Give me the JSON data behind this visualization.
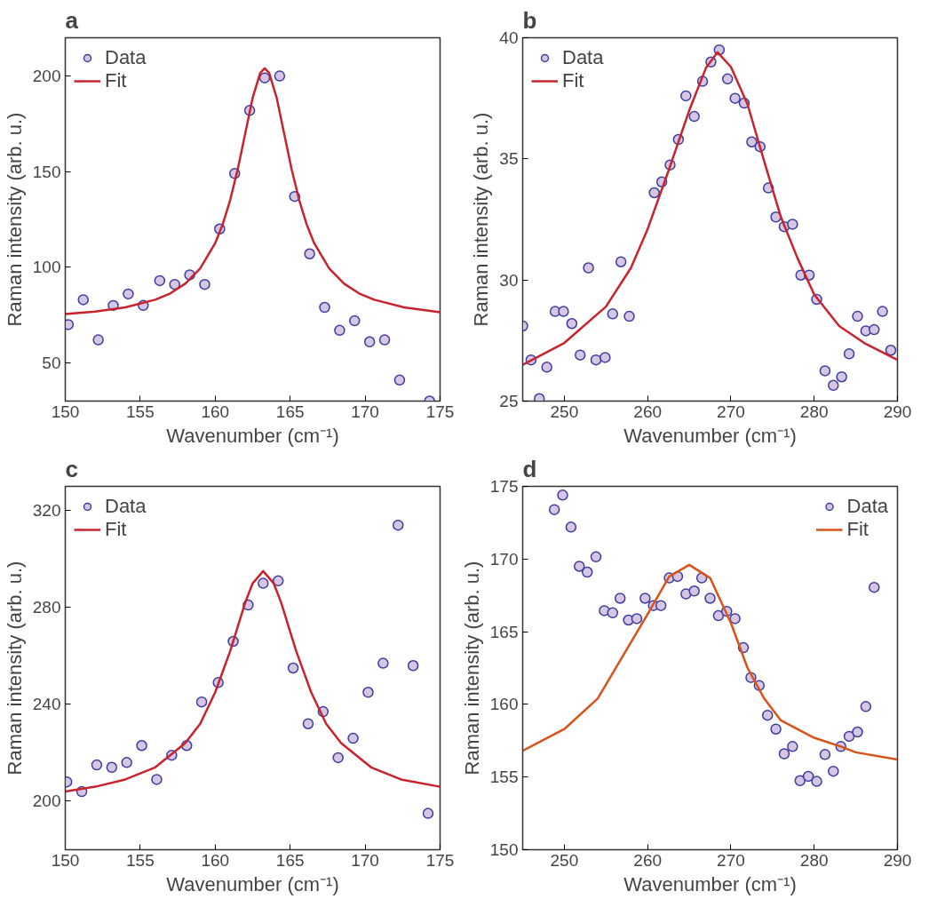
{
  "chart_data": [
    {
      "type": "scatter",
      "title": "a",
      "xlabel": "Wavenumber (cm⁻¹)",
      "ylabel": "Raman intensity (arb. u.)",
      "xlim": [
        150,
        175
      ],
      "ylim": [
        30,
        220
      ],
      "xticks": [
        150,
        155,
        160,
        165,
        170,
        175
      ],
      "yticks": [
        50,
        100,
        150,
        200
      ],
      "grid": false,
      "legend": "top left",
      "series": [
        {
          "name": "Data",
          "marker": "circle",
          "color": "#d7c6e3",
          "x": [
            150.2,
            151.2,
            152.2,
            153.2,
            154.2,
            155.2,
            156.3,
            157.3,
            158.3,
            159.3,
            160.3,
            161.3,
            162.3,
            163.3,
            164.3,
            165.3,
            166.3,
            167.3,
            168.3,
            169.3,
            170.3,
            171.3,
            172.3,
            174.3
          ],
          "values": [
            70,
            83,
            62,
            80,
            86,
            80,
            93,
            91,
            96,
            91,
            120,
            149,
            182,
            199,
            200,
            137,
            107,
            79,
            67,
            72,
            61,
            62,
            41,
            30
          ]
        },
        {
          "name": "Fit",
          "type": "line",
          "color": "#c8232c",
          "x": [
            150,
            152,
            154,
            156,
            157,
            158,
            159,
            160,
            160.5,
            161,
            161.5,
            162,
            162.5,
            163,
            163.3,
            163.6,
            164.1,
            164.6,
            165.1,
            165.6,
            166.1,
            166.6,
            167.6,
            168.6,
            169.6,
            170.6,
            172.6,
            175
          ],
          "values": [
            75.5,
            76.8,
            79,
            83,
            86.3,
            91.4,
            99.4,
            112.6,
            122.4,
            135.2,
            151.1,
            169.8,
            188.6,
            201.6,
            204,
            201.6,
            188.6,
            169.8,
            151.1,
            135.2,
            122.4,
            112.6,
            99.4,
            91.4,
            86.3,
            83,
            79,
            76.5
          ]
        }
      ]
    },
    {
      "type": "scatter",
      "title": "b",
      "xlabel": "Wavenumber (cm⁻¹)",
      "ylabel": "Raman intensity (arb. u.)",
      "xlim": [
        245,
        290
      ],
      "ylim": [
        25,
        40
      ],
      "xticks": [
        250,
        260,
        270,
        280,
        290
      ],
      "yticks": [
        25,
        30,
        35,
        40
      ],
      "grid": false,
      "legend": "top left",
      "series": [
        {
          "name": "Data",
          "marker": "circle",
          "color": "#d7c6e3",
          "x": [
            245.0,
            246.0,
            247.0,
            247.9,
            248.9,
            249.9,
            250.9,
            251.9,
            252.9,
            253.8,
            254.9,
            255.8,
            256.8,
            257.8,
            260.8,
            261.7,
            262.7,
            263.7,
            264.6,
            265.6,
            266.6,
            267.6,
            268.6,
            269.6,
            270.5,
            271.6,
            272.5,
            273.5,
            274.5,
            275.4,
            276.4,
            277.4,
            278.4,
            279.4,
            280.3,
            281.3,
            282.3,
            283.3,
            284.2,
            285.2,
            286.2,
            287.2,
            288.2,
            289.2
          ],
          "values": [
            28.1,
            26.7,
            25.1,
            26.4,
            28.7,
            28.7,
            28.2,
            26.9,
            30.5,
            26.7,
            26.8,
            28.6,
            30.75,
            28.5,
            33.6,
            34.05,
            34.75,
            35.8,
            37.6,
            36.75,
            38.2,
            39.0,
            39.5,
            38.3,
            37.5,
            37.3,
            35.7,
            35.5,
            33.8,
            32.6,
            32.2,
            32.3,
            30.2,
            30.2,
            29.2,
            26.25,
            25.65,
            26.0,
            26.95,
            28.5,
            27.9,
            27.95,
            28.7,
            27.1
          ]
        },
        {
          "name": "Fit",
          "type": "line",
          "color": "#c8232c",
          "x": [
            245,
            250,
            255,
            258,
            260,
            262.5,
            265,
            267,
            268.4,
            270,
            272,
            274,
            276,
            278,
            280,
            283,
            286,
            290
          ],
          "values": [
            26.5,
            27.4,
            28.9,
            30.5,
            32.1,
            34.5,
            37.0,
            38.75,
            39.4,
            38.8,
            37.25,
            34.9,
            32.6,
            30.9,
            29.4,
            28.1,
            27.4,
            26.7
          ]
        }
      ]
    },
    {
      "type": "scatter",
      "title": "c",
      "xlabel": "Wavenumber (cm⁻¹)",
      "ylabel": "Raman intensity (arb. u.)",
      "xlim": [
        150,
        175
      ],
      "ylim": [
        180,
        330
      ],
      "xticks": [
        150,
        155,
        160,
        165,
        170,
        175
      ],
      "yticks": [
        200,
        240,
        280,
        320
      ],
      "grid": false,
      "legend": "top left",
      "series": [
        {
          "name": "Data",
          "marker": "circle",
          "color": "#d7c6e3",
          "x": [
            150.1,
            151.1,
            152.1,
            153.1,
            154.1,
            155.1,
            156.1,
            157.1,
            158.1,
            159.1,
            160.2,
            161.2,
            162.2,
            163.2,
            164.2,
            165.2,
            166.2,
            167.2,
            168.2,
            169.2,
            170.2,
            171.2,
            172.2,
            173.2,
            174.2
          ],
          "values": [
            208,
            204,
            215,
            214,
            216,
            223,
            209,
            219,
            223,
            241,
            249,
            266,
            281,
            290,
            291,
            255,
            232,
            237,
            218,
            226,
            245,
            257,
            314,
            256,
            195
          ]
        },
        {
          "name": "Fit",
          "type": "line",
          "color": "#c8232c",
          "x": [
            150,
            152,
            154,
            156,
            158,
            159,
            160,
            161,
            161.5,
            162,
            162.5,
            163.2,
            163.9,
            164.4,
            164.9,
            165.4,
            166.4,
            167.4,
            168.4,
            170.4,
            172.4,
            175
          ],
          "values": [
            204,
            206,
            209,
            214,
            224,
            232,
            245,
            262,
            272,
            282,
            290,
            295,
            290,
            282,
            272,
            262,
            245,
            232,
            224,
            214,
            209,
            206
          ]
        }
      ]
    },
    {
      "type": "scatter",
      "title": "d",
      "xlabel": "Wavenumber (cm⁻¹)",
      "ylabel": "Raman intensity (arb. u.)",
      "xlim": [
        245,
        290
      ],
      "ylim": [
        150,
        175
      ],
      "xticks": [
        250,
        260,
        270,
        280,
        290
      ],
      "yticks": [
        150,
        155,
        160,
        165,
        170,
        175
      ],
      "grid": false,
      "legend": "top right",
      "series": [
        {
          "name": "Data",
          "marker": "circle",
          "color": "#d7c6e3",
          "x": [
            248.8,
            249.8,
            250.8,
            251.8,
            252.75,
            253.8,
            254.8,
            255.8,
            256.7,
            257.7,
            258.7,
            259.7,
            260.7,
            261.6,
            262.6,
            263.6,
            264.6,
            265.6,
            266.5,
            267.5,
            268.5,
            269.5,
            270.5,
            271.5,
            272.4,
            273.4,
            274.4,
            275.4,
            276.4,
            277.4,
            278.3,
            279.3,
            280.3,
            281.3,
            282.3,
            283.2,
            284.2,
            285.2,
            286.2,
            287.2
          ],
          "values": [
            173.4,
            174.4,
            172.2,
            169.5,
            169.1,
            170.15,
            166.45,
            166.3,
            167.3,
            165.8,
            165.9,
            167.3,
            166.8,
            166.8,
            168.7,
            168.8,
            167.6,
            167.8,
            168.7,
            167.3,
            166.1,
            166.4,
            165.9,
            163.9,
            161.85,
            161.3,
            159.25,
            158.3,
            156.6,
            157.1,
            154.75,
            155.05,
            154.7,
            156.55,
            155.4,
            157.1,
            157.8,
            158.1,
            159.85,
            168.05
          ]
        },
        {
          "name": "Fit",
          "type": "line",
          "color": "#d95319",
          "x": [
            245,
            250,
            254,
            257,
            260,
            262.6,
            265,
            267.5,
            270,
            272,
            274,
            276,
            280,
            283.2,
            285,
            290
          ],
          "values": [
            156.8,
            158.3,
            160.4,
            163.3,
            166.2,
            168.8,
            169.6,
            168.7,
            165.6,
            162.5,
            160.4,
            158.9,
            157.7,
            157.1,
            156.7,
            156.2
          ]
        }
      ]
    }
  ]
}
